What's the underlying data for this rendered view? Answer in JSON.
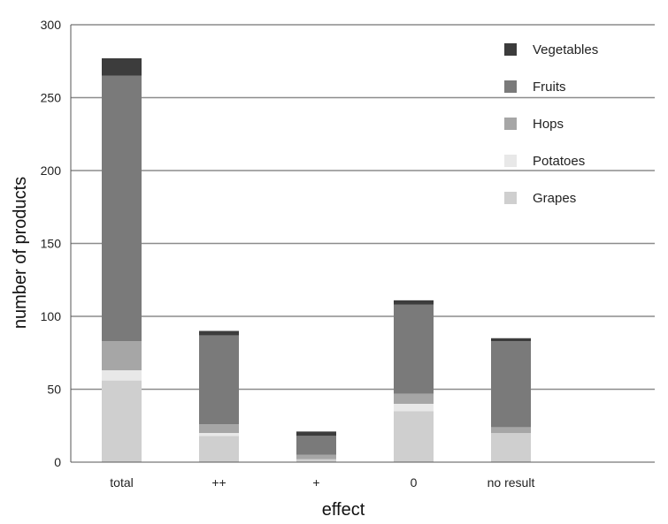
{
  "chart_data": {
    "type": "bar",
    "stacked": true,
    "categories": [
      "total",
      "++",
      "+",
      "0",
      "no result"
    ],
    "series": [
      {
        "name": "Grapes",
        "color": "#cfcfcf",
        "values": [
          56,
          18,
          2,
          35,
          20
        ]
      },
      {
        "name": "Potatoes",
        "color": "#e8e8e8",
        "values": [
          7,
          2,
          0,
          5,
          0
        ]
      },
      {
        "name": "Hops",
        "color": "#a6a6a6",
        "values": [
          20,
          6,
          3,
          7,
          4
        ]
      },
      {
        "name": "Fruits",
        "color": "#7a7a7a",
        "values": [
          182,
          61,
          13,
          61,
          59
        ]
      },
      {
        "name": "Vegetables",
        "color": "#3c3c3c",
        "values": [
          12,
          3,
          3,
          3,
          2
        ]
      }
    ],
    "legend_order": [
      "Vegetables",
      "Fruits",
      "Hops",
      "Potatoes",
      "Grapes"
    ],
    "xlabel": "effect",
    "ylabel": "number of products",
    "ylim": [
      0,
      300
    ],
    "yticks": [
      "0",
      "50",
      "100",
      "150",
      "200",
      "250",
      "300"
    ],
    "grid": true,
    "legend_position": "top-right"
  }
}
